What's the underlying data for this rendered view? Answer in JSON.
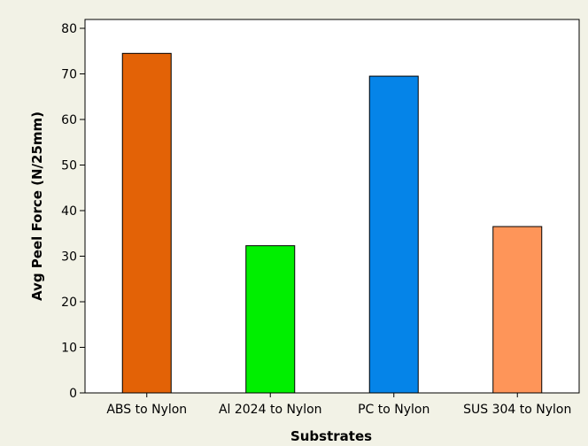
{
  "chart_data": {
    "type": "bar",
    "title": "",
    "xlabel": "Substrates",
    "ylabel": "Avg Peel Force (N/25mm)",
    "categories": [
      "ABS to Nylon",
      "Al 2024 to Nylon",
      "PC to Nylon",
      "SUS 304 to Nylon"
    ],
    "values": [
      74.5,
      32.3,
      69.5,
      36.5
    ],
    "colors": [
      "#e36206",
      "#00ef00",
      "#0584e8",
      "#fe9559"
    ],
    "ylim": [
      0,
      80
    ],
    "yticks": [
      0,
      10,
      20,
      30,
      40,
      50,
      60,
      70,
      80
    ],
    "grid": false,
    "legend": "none"
  }
}
